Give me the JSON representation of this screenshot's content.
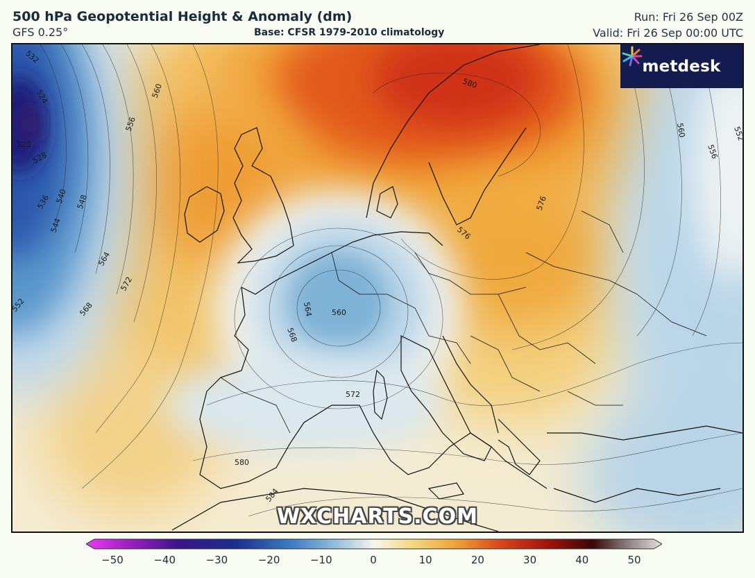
{
  "header": {
    "title": "500 hPa Geopotential Height & Anomaly (dm)",
    "model": "GFS 0.25°",
    "base": "Base: CFSR 1979-2010 climatology",
    "run": "Run: Fri 26 Sep 00Z",
    "valid": "Valid: Fri 26 Sep 00:00 UTC"
  },
  "logo": {
    "text": "metdesk",
    "icon": "sparkle-burst-icon"
  },
  "watermark": "WXCHARTS.COM",
  "contour_labels": [
    "532",
    "524",
    "520",
    "528",
    "536",
    "540",
    "544",
    "548",
    "552",
    "556",
    "560",
    "564",
    "568",
    "572",
    "576",
    "580",
    "584",
    "560",
    "564",
    "568",
    "572",
    "576",
    "580",
    "560",
    "556",
    "552"
  ],
  "colorbar": {
    "min": -50,
    "max": 50,
    "ticks": [
      "−50",
      "−40",
      "−30",
      "−20",
      "−10",
      "0",
      "10",
      "20",
      "30",
      "40",
      "50"
    ]
  },
  "colors": {
    "strong_negative": "#1a2f8f",
    "negative": "#5f9fd0",
    "weak_negative": "#cfe3ef",
    "neutral": "#f7f4e4",
    "weak_positive": "#f5d98a",
    "positive": "#f0a030",
    "strong_positive": "#d8401a"
  }
}
